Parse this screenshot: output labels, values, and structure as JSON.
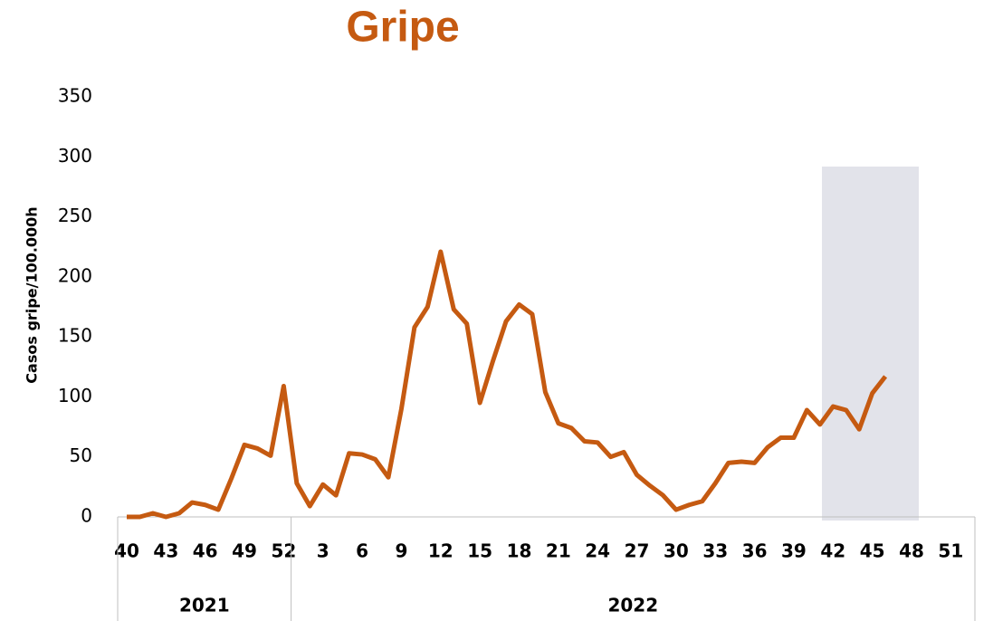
{
  "chart_data": {
    "type": "line",
    "title": "Gripe",
    "y_label": "Casos gripe/100.000h",
    "categories": [
      "40",
      null,
      null,
      "43",
      null,
      null,
      "46",
      null,
      null,
      "49",
      null,
      null,
      "52",
      null,
      null,
      "3",
      null,
      null,
      "6",
      null,
      null,
      "9",
      null,
      null,
      "12",
      null,
      null,
      "15",
      null,
      null,
      "18",
      null,
      null,
      "21",
      null,
      null,
      "24",
      null,
      null,
      "27",
      null,
      null,
      "30",
      null,
      null,
      "33",
      null,
      null,
      "36",
      null,
      null,
      "39",
      null,
      null,
      "42",
      null,
      null,
      "45",
      null,
      null,
      "48",
      null,
      null,
      "51",
      null
    ],
    "groups": [
      {
        "label": "2021",
        "count": 13
      },
      {
        "label": "2022",
        "count": 52
      }
    ],
    "series": [
      {
        "color": "#c55a11",
        "values": [
          0,
          0,
          3,
          0,
          3,
          12,
          10,
          6,
          32,
          60,
          57,
          51,
          109,
          28,
          9,
          27,
          18,
          53,
          52,
          48,
          33,
          90,
          158,
          175,
          221,
          173,
          161,
          95,
          130,
          163,
          177,
          169,
          104,
          78,
          74,
          63,
          62,
          50,
          54,
          35,
          26,
          18,
          6,
          10,
          13,
          28,
          45,
          46,
          45,
          58,
          66,
          66,
          89,
          77,
          92,
          89,
          73,
          103,
          117,
          null,
          null,
          null,
          null,
          null,
          null
        ]
      }
    ],
    "ylim": [
      0,
      350
    ],
    "yticks": [
      0,
      50,
      100,
      150,
      200,
      250,
      300,
      350
    ],
    "grid": false
  }
}
